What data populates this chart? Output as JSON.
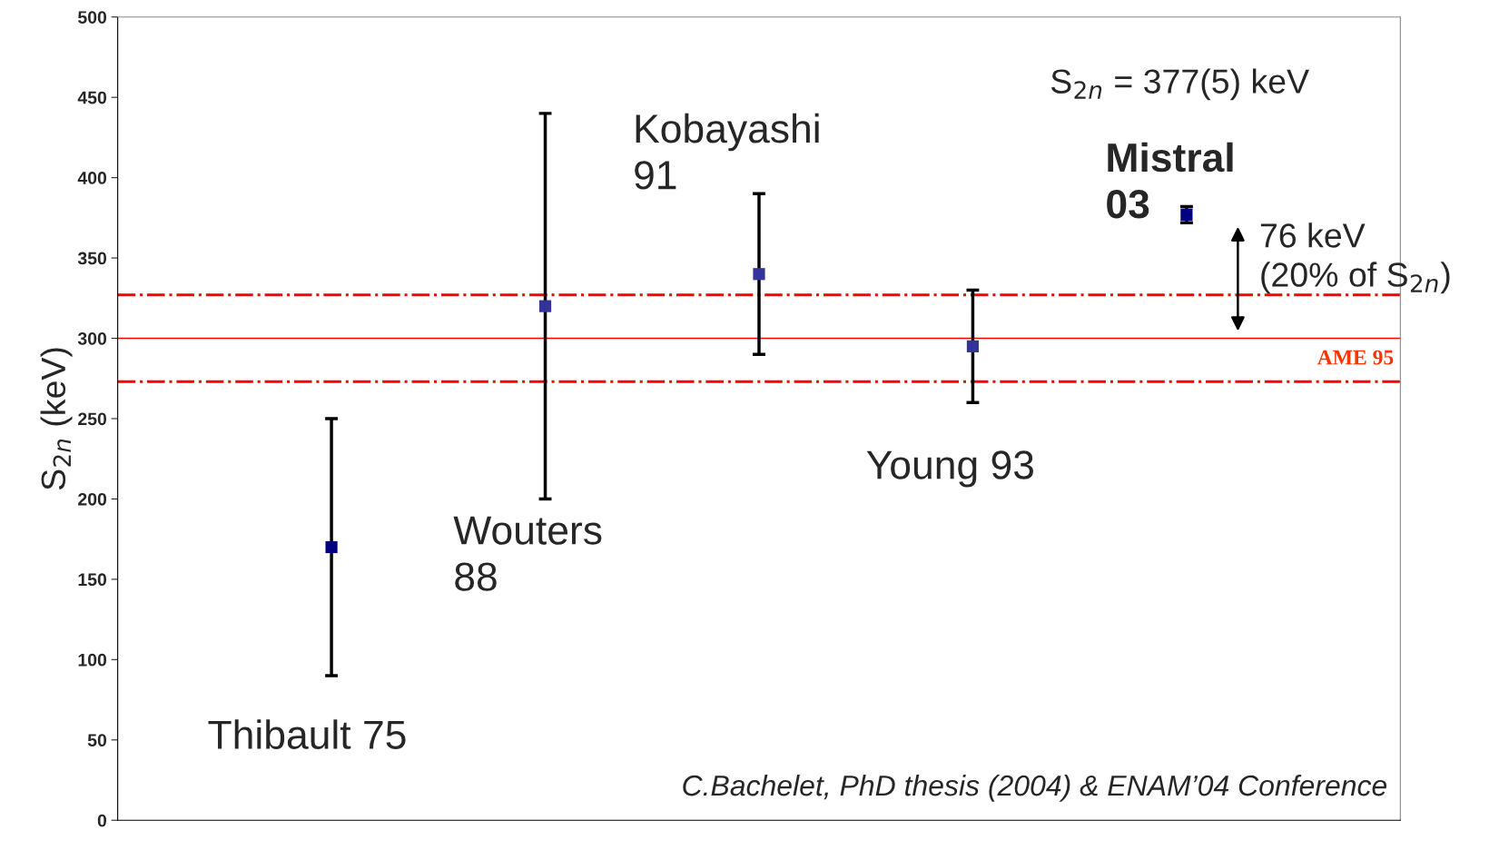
{
  "chart_data": {
    "type": "scatter",
    "ylabel": "S$_{2n}$ (keV)",
    "categories": [
      null,
      null,
      null,
      null,
      null
    ],
    "values": [
      170,
      320,
      340,
      295,
      377
    ],
    "errors": [
      80,
      120,
      50,
      35,
      5
    ],
    "colors": [
      "#000080",
      "#333399",
      "#333399",
      "#333399",
      "#000080"
    ],
    "marker": "square",
    "ylim": [
      0,
      500
    ],
    "yticks": [
      0,
      50,
      100,
      150,
      200,
      250,
      300,
      350,
      400,
      450,
      500
    ],
    "ref_lines": [
      {
        "axis": "y",
        "value": 300,
        "label": "AME 95",
        "color": "#ff0000",
        "line_style": "solid"
      },
      {
        "axis": "y",
        "value": 327,
        "label": null,
        "color": "#ff0000",
        "line_style": "dashdot"
      },
      {
        "axis": "y",
        "value": 273,
        "label": null,
        "color": "#ff0000",
        "line_style": "dashdot"
      }
    ],
    "annotations": [
      "Thibault 75",
      "Wouters\n88",
      "Kobayashi\n91",
      "Young 93",
      "Mistral\n03",
      "S$_{2n}$ = 377(5) keV",
      "76 keV\n(20% of S$_{2n}$)",
      "C.Bachelet, PhD thesis (2004) & ENAM’04 Conference"
    ],
    "grid": false,
    "legend": false
  }
}
